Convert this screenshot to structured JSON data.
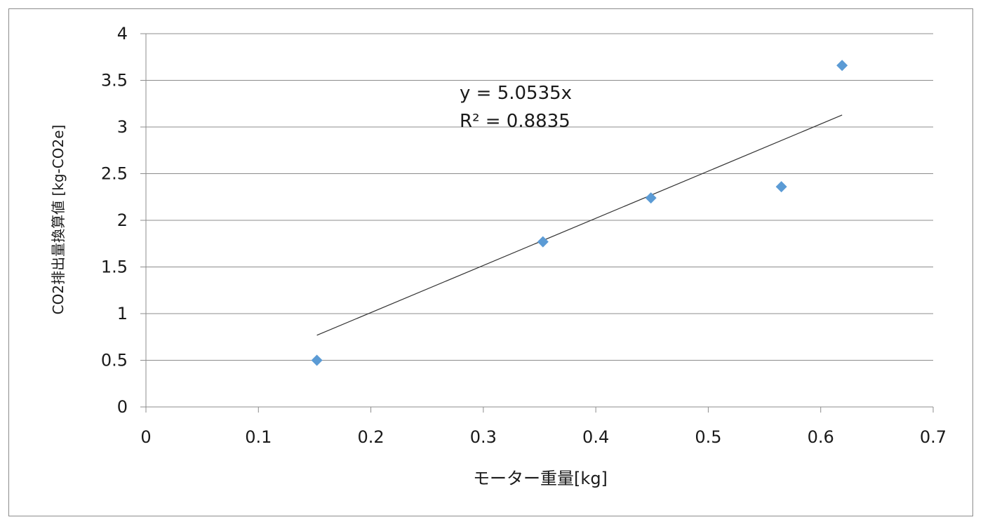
{
  "chart_data": {
    "type": "scatter",
    "title": "",
    "xlabel": "モーター重量[kg]",
    "ylabel": "CO2排出量換算値 [kg-CO2e]",
    "xlim": [
      0,
      0.7
    ],
    "ylim": [
      0,
      4
    ],
    "xticks": [
      "0",
      "0.1",
      "0.2",
      "0.3",
      "0.4",
      "0.5",
      "0.6",
      "0.7"
    ],
    "yticks": [
      "0",
      "0.5",
      "1",
      "1.5",
      "2",
      "2.5",
      "3",
      "3.5",
      "4"
    ],
    "grid": true,
    "legend": "none",
    "series": [
      {
        "x": [
          0.152,
          0.353,
          0.449,
          0.565,
          0.619
        ],
        "y": [
          0.5,
          1.77,
          2.24,
          2.36,
          3.66
        ],
        "marker": "diamond",
        "color": "#5b9bd5"
      }
    ],
    "trendline": {
      "type": "linear",
      "slope": 5.0535,
      "intercept": 0,
      "x_range": [
        0.152,
        0.619
      ],
      "color": "#333333"
    },
    "annotations": [
      "y = 5.0535x",
      "R² = 0.8835"
    ]
  }
}
